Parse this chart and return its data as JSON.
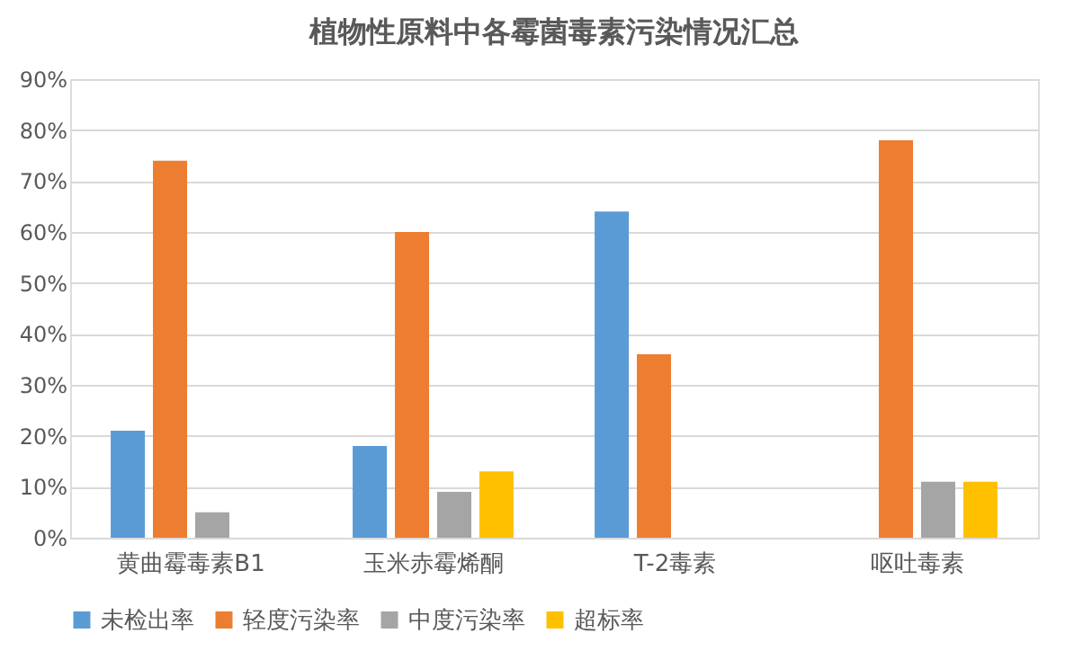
{
  "chart_data": {
    "type": "bar",
    "title": "植物性原料中各霉菌毒素污染情况汇总",
    "categories": [
      "黄曲霉毒素B1",
      "玉米赤霉烯酮",
      "T-2毒素",
      "呕吐毒素"
    ],
    "series": [
      {
        "name": "未检出率",
        "color": "#5b9bd5",
        "values": [
          21,
          18,
          64,
          null
        ]
      },
      {
        "name": "轻度污染率",
        "color": "#ed7d31",
        "values": [
          74,
          60,
          36,
          78
        ]
      },
      {
        "name": "中度污染率",
        "color": "#a5a5a5",
        "values": [
          5,
          9,
          null,
          11
        ]
      },
      {
        "name": "超标率",
        "color": "#ffc000",
        "values": [
          null,
          13,
          null,
          11
        ]
      }
    ],
    "ylim": [
      0,
      90
    ],
    "yticks": [
      {
        "value": 0,
        "label": "0%"
      },
      {
        "value": 10,
        "label": "10%"
      },
      {
        "value": 20,
        "label": "20%"
      },
      {
        "value": 30,
        "label": "30%"
      },
      {
        "value": 40,
        "label": "40%"
      },
      {
        "value": 50,
        "label": "50%"
      },
      {
        "value": 60,
        "label": "60%"
      },
      {
        "value": 70,
        "label": "70%"
      },
      {
        "value": 80,
        "label": "80%"
      },
      {
        "value": 90,
        "label": "90%"
      }
    ],
    "grid": "y",
    "legend": "bottom"
  }
}
